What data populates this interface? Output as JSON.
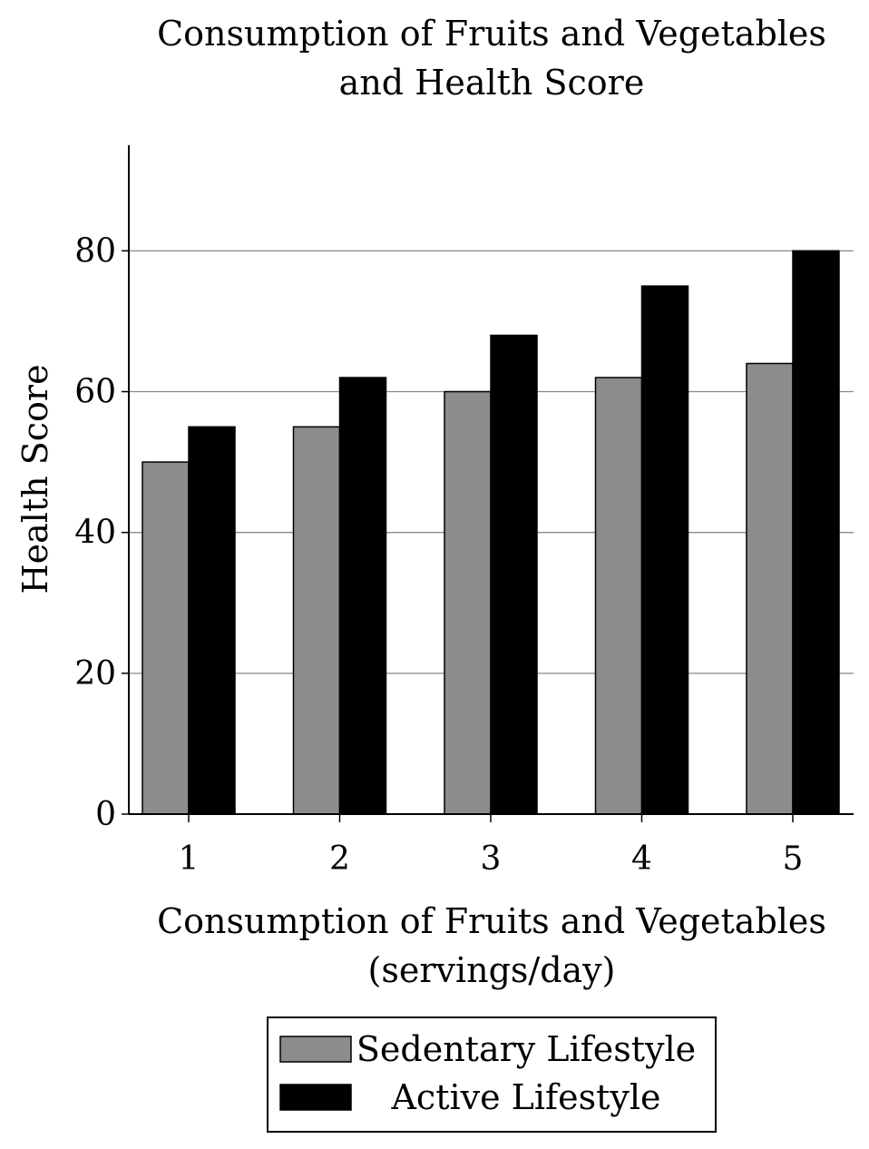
{
  "chart_data": {
    "type": "bar",
    "title_lines": [
      "Consumption of Fruits and Vegetables",
      "and Health Score"
    ],
    "xlabel_lines": [
      "Consumption of Fruits and Vegetables",
      "(servings/day)"
    ],
    "ylabel": "Health Score",
    "categories": [
      "1",
      "2",
      "3",
      "4",
      "5"
    ],
    "series": [
      {
        "name": "Sedentary Lifestyle",
        "values": [
          50,
          55,
          60,
          62,
          64
        ],
        "color": "#8c8c8c"
      },
      {
        "name": "Active Lifestyle",
        "values": [
          55,
          62,
          68,
          75,
          80
        ],
        "color": "#000000"
      }
    ],
    "ylim": [
      0,
      95
    ],
    "yticks": [
      "0",
      "20",
      "40",
      "60",
      "80"
    ],
    "grid": "horizontal",
    "legend_position": "bottom"
  }
}
